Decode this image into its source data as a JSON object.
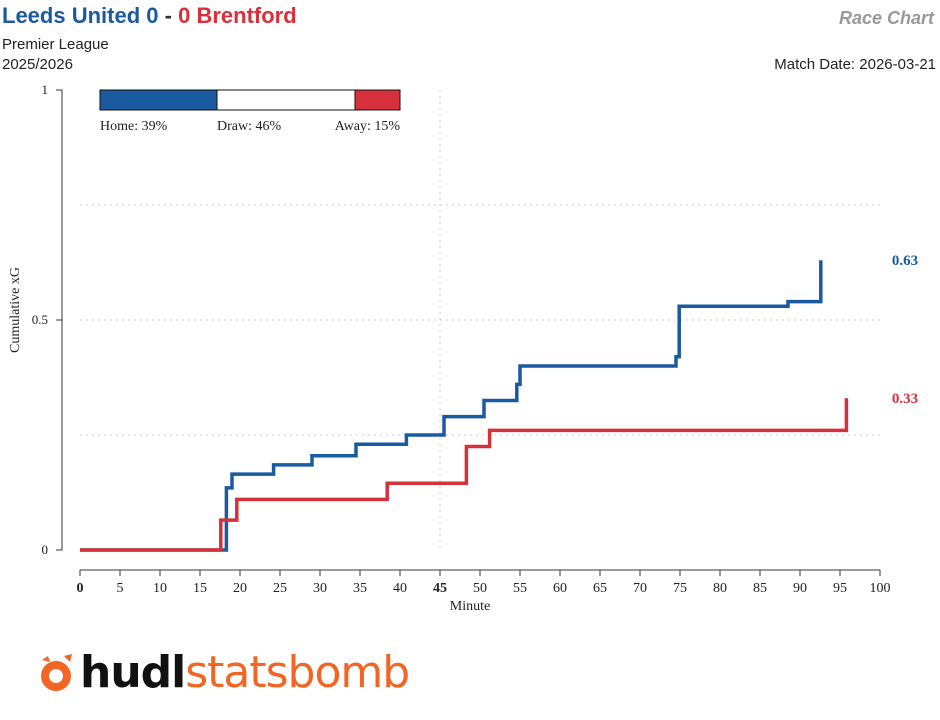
{
  "header": {
    "home_team": "Leeds United",
    "home_score": "0",
    "separator": "-",
    "away_score": "0",
    "away_team": "Brentford",
    "competition": "Premier League",
    "season": "2025/2026",
    "chart_name": "Race Chart",
    "match_date": "Match Date: 2026-03-21"
  },
  "colors": {
    "home": "#1a5aa0",
    "away": "#d6303a",
    "grid": "#cccccc",
    "logo_orange": "#f26522"
  },
  "probabilities": {
    "home": 39,
    "draw": 46,
    "away": 15,
    "home_label": "Home: 39%",
    "draw_label": "Draw: 46%",
    "away_label": "Away: 15%"
  },
  "logo": {
    "icon": "statsbomb-logo-icon",
    "text_dark": "hudl",
    "text_orange": "statsbomb"
  },
  "chart_data": {
    "type": "line",
    "xlabel": "Minute",
    "ylabel": "Cumulative xG",
    "xlim": [
      0,
      100
    ],
    "ylim": [
      0,
      1
    ],
    "x_ticks": [
      0,
      5,
      10,
      15,
      20,
      25,
      30,
      35,
      40,
      45,
      50,
      55,
      60,
      65,
      70,
      75,
      80,
      85,
      90,
      95,
      100
    ],
    "x_tick_bold": [
      0,
      45
    ],
    "y_ticks": [
      0,
      0.5,
      1
    ],
    "y_tick_labels": [
      "0",
      "0.5",
      "1"
    ],
    "y_grid": [
      0.25,
      0.5,
      0.75
    ],
    "x_grid": [
      45
    ],
    "grid": true,
    "series": [
      {
        "key": "home",
        "final_label": "0.63",
        "steps": [
          [
            0,
            0
          ],
          [
            18.3,
            0
          ],
          [
            18.3,
            0.135
          ],
          [
            19,
            0.135
          ],
          [
            19,
            0.165
          ],
          [
            24.2,
            0.165
          ],
          [
            24.2,
            0.185
          ],
          [
            29,
            0.185
          ],
          [
            29,
            0.205
          ],
          [
            34.5,
            0.205
          ],
          [
            34.5,
            0.23
          ],
          [
            40.8,
            0.23
          ],
          [
            40.8,
            0.25
          ],
          [
            45.5,
            0.25
          ],
          [
            45.5,
            0.29
          ],
          [
            50.5,
            0.29
          ],
          [
            50.5,
            0.325
          ],
          [
            54.6,
            0.325
          ],
          [
            54.6,
            0.36
          ],
          [
            55,
            0.36
          ],
          [
            55,
            0.4
          ],
          [
            74.5,
            0.4
          ],
          [
            74.5,
            0.42
          ],
          [
            74.9,
            0.42
          ],
          [
            74.9,
            0.53
          ],
          [
            88.5,
            0.53
          ],
          [
            88.5,
            0.54
          ],
          [
            92.6,
            0.54
          ],
          [
            92.6,
            0.63
          ]
        ]
      },
      {
        "key": "away",
        "final_label": "0.33",
        "steps": [
          [
            0,
            0
          ],
          [
            17.6,
            0
          ],
          [
            17.6,
            0.065
          ],
          [
            19.6,
            0.065
          ],
          [
            19.6,
            0.11
          ],
          [
            38.4,
            0.11
          ],
          [
            38.4,
            0.145
          ],
          [
            48.3,
            0.145
          ],
          [
            48.3,
            0.225
          ],
          [
            51.2,
            0.225
          ],
          [
            51.2,
            0.26
          ],
          [
            95.8,
            0.26
          ],
          [
            95.8,
            0.33
          ]
        ]
      }
    ]
  }
}
